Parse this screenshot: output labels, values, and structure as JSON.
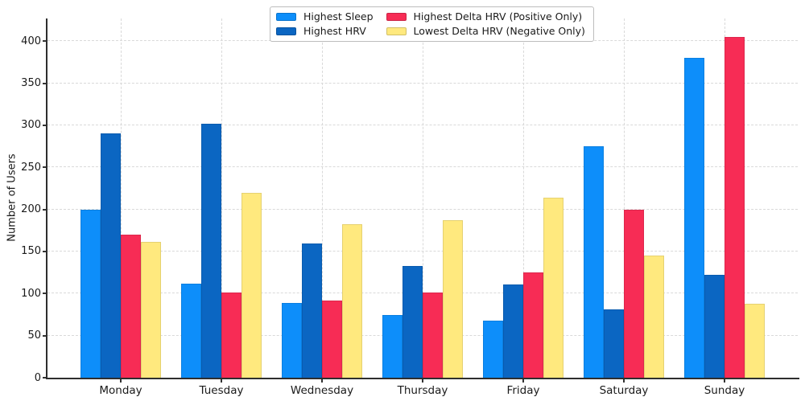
{
  "chart_data": {
    "type": "bar",
    "title": "",
    "xlabel": "",
    "ylabel": "Number of Users",
    "categories": [
      "Monday",
      "Tuesday",
      "Wednesday",
      "Thursday",
      "Friday",
      "Saturday",
      "Sunday"
    ],
    "series": [
      {
        "name": "Highest Sleep",
        "color": "#0D8EFA",
        "values": [
          200,
          112,
          89,
          75,
          68,
          275,
          380
        ]
      },
      {
        "name": "Highest HRV",
        "color": "#0B66C2",
        "values": [
          290,
          302,
          160,
          133,
          111,
          81,
          122
        ]
      },
      {
        "name": "Highest Delta HRV (Positive Only)",
        "color": "#F72C55",
        "values": [
          170,
          101,
          92,
          101,
          125,
          200,
          405
        ]
      },
      {
        "name": "Lowest Delta HRV (Negative Only)",
        "color": "#FFE97E",
        "values": [
          161,
          220,
          182,
          187,
          214,
          145,
          88
        ]
      }
    ],
    "yticks": [
      0,
      50,
      100,
      150,
      200,
      250,
      300,
      350,
      400
    ],
    "ylim": [
      0,
      427
    ],
    "grid": true,
    "grid_style": "dashed",
    "legend_position": "top-center",
    "legend_columns": 2
  }
}
